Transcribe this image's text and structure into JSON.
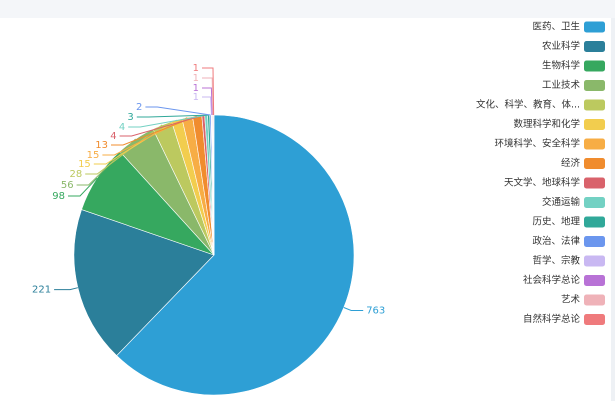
{
  "chart_data": {
    "type": "pie",
    "slices": [
      {
        "label": "医药、卫生",
        "value": 763,
        "color": "#2e9fd5"
      },
      {
        "label": "农业科学",
        "value": 221,
        "color": "#2b7f9a"
      },
      {
        "label": "生物科学",
        "value": 98,
        "color": "#36a85f"
      },
      {
        "label": "工业技术",
        "value": 56,
        "color": "#8ab86a"
      },
      {
        "label": "文化、科学、教育、体...",
        "value": 28,
        "color": "#bcc95f"
      },
      {
        "label": "数理科学和化学",
        "value": 15,
        "color": "#f2cd4e"
      },
      {
        "label": "环境科学、安全科学",
        "value": 15,
        "color": "#f7ad45"
      },
      {
        "label": "经济",
        "value": 13,
        "color": "#f08c2e"
      },
      {
        "label": "天文学、地球科学",
        "value": 4,
        "color": "#d9626b"
      },
      {
        "label": "交通运输",
        "value": 4,
        "color": "#73d1c3"
      },
      {
        "label": "历史、地理",
        "value": 3,
        "color": "#30a899"
      },
      {
        "label": "政治、法律",
        "value": 2,
        "color": "#6b96ee"
      },
      {
        "label": "哲学、宗教",
        "value": 1,
        "color": "#c9b8f2"
      },
      {
        "label": "社会科学总论",
        "value": 1,
        "color": "#b872d6"
      },
      {
        "label": "艺术",
        "value": 1,
        "color": "#efb2b8"
      },
      {
        "label": "自然科学总论",
        "value": 1,
        "color": "#ef7a7c"
      }
    ],
    "legend_position": "right"
  }
}
